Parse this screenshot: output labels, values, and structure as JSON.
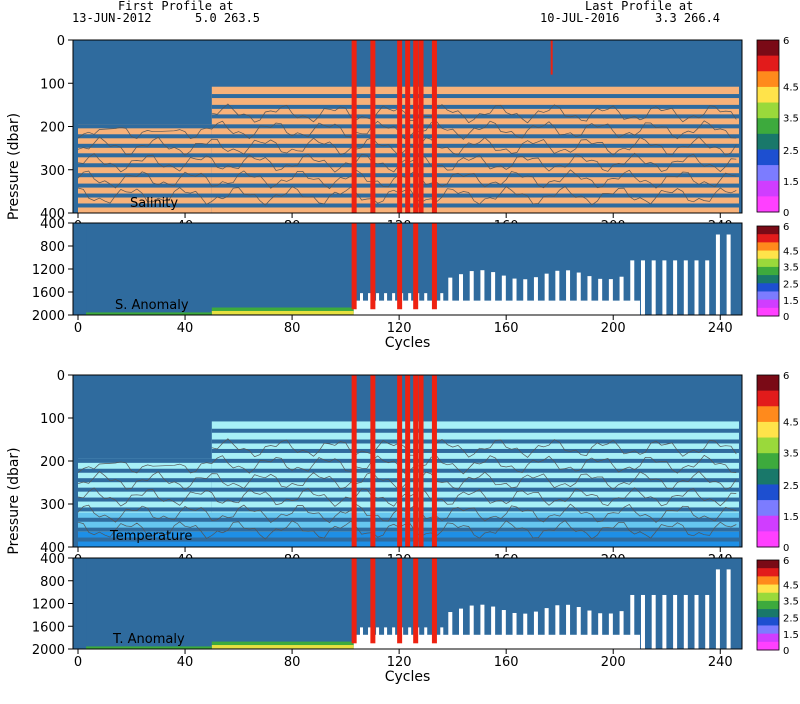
{
  "header": {
    "first_title": "First Profile at",
    "first_date": "13-JUN-2012",
    "first_coords": "5.0 263.5",
    "last_title": "Last Profile at",
    "last_date": "10-JUL-2016",
    "last_coords": "3.3 266.4"
  },
  "colors": {
    "fill_blue": "#2f6b9e",
    "orange": "#f8b27a",
    "red": "#ee2211",
    "light_cyan": "#a7f0f7",
    "mid_cyan": "#66c6ef",
    "deep_blue": "#1e8fe6"
  },
  "chart_data": [
    {
      "type": "heatmap",
      "name_label": "Salinity",
      "ylabel": "Pressure (dbar)",
      "xlabel": "",
      "xlim": [
        0,
        247
      ],
      "ylim": [
        400,
        0
      ],
      "xticks": [
        "0",
        "40",
        "80",
        "120",
        "160",
        "200",
        "240"
      ],
      "yticks": [
        "0",
        "100",
        "200",
        "300",
        "400"
      ],
      "colorbar": [
        "6",
        "4.5",
        "3.5",
        "2.5",
        "1.5",
        "0"
      ]
    },
    {
      "type": "heatmap",
      "name_label": "S. Anomaly",
      "ylabel": "",
      "xlabel": "Cycles",
      "xlim": [
        0,
        247
      ],
      "ylim": [
        2000,
        400
      ],
      "xticks": [
        "0",
        "40",
        "80",
        "120",
        "160",
        "200",
        "240"
      ],
      "yticks": [
        "400",
        "800",
        "1200",
        "1600",
        "2000"
      ],
      "colorbar": [
        "6",
        "4.5",
        "3.5",
        "2.5",
        "1.5",
        "0"
      ]
    },
    {
      "type": "heatmap",
      "name_label": "Temperature",
      "ylabel": "Pressure (dbar)",
      "xlabel": "",
      "xlim": [
        0,
        247
      ],
      "ylim": [
        400,
        0
      ],
      "xticks": [
        "0",
        "40",
        "80",
        "120",
        "160",
        "200",
        "240"
      ],
      "yticks": [
        "0",
        "100",
        "200",
        "300",
        "400"
      ],
      "colorbar": [
        "6",
        "4.5",
        "3.5",
        "2.5",
        "1.5",
        "0"
      ]
    },
    {
      "type": "heatmap",
      "name_label": "T. Anomaly",
      "ylabel": "",
      "xlabel": "Cycles",
      "xlim": [
        0,
        247
      ],
      "ylim": [
        2000,
        400
      ],
      "xticks": [
        "0",
        "40",
        "80",
        "120",
        "160",
        "200",
        "240"
      ],
      "yticks": [
        "400",
        "800",
        "1200",
        "1600",
        "2000"
      ],
      "colorbar": [
        "6",
        "4.5",
        "3.5",
        "2.5",
        "1.5",
        "0"
      ]
    }
  ]
}
